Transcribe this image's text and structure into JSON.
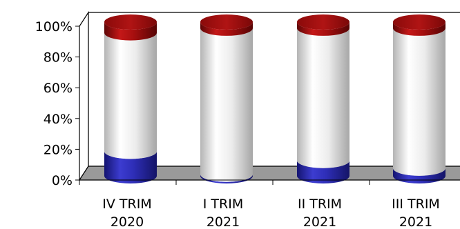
{
  "chart_data": {
    "type": "bar",
    "stacked": true,
    "orientation": "vertical",
    "style": "3d-cylinder",
    "categories": [
      [
        "IV TRIM",
        "2020"
      ],
      [
        "I TRIM",
        "2021"
      ],
      [
        "II TRIM",
        "2021"
      ],
      [
        "III TRIM",
        "2021"
      ]
    ],
    "series": [
      {
        "color": "#2e2eb0",
        "values": [
          16,
          1,
          10,
          5
        ]
      },
      {
        "color": "#e6e6e6",
        "values": [
          77,
          95,
          86,
          91
        ]
      },
      {
        "color": "#a80f0f",
        "values": [
          7,
          4,
          4,
          4
        ]
      }
    ],
    "yticks": [
      "0%",
      "20%",
      "40%",
      "60%",
      "80%",
      "100%"
    ],
    "ylim": [
      0,
      100
    ],
    "legend": "none",
    "grid": false
  }
}
